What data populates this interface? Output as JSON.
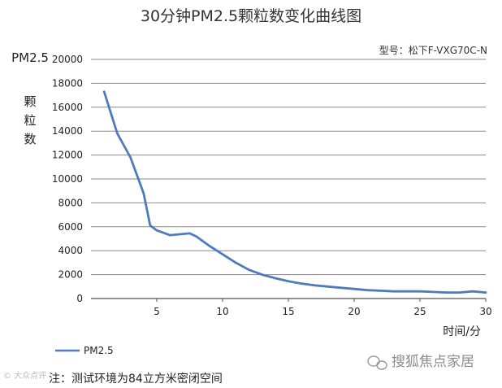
{
  "chart_data": {
    "type": "line",
    "title": "30分钟PM2.5颗粒数变化曲线图",
    "subtitle": "型号：松下F-VXG70C-N",
    "xlabel": "时间/分",
    "ylabel": "PM2.5颗粒数",
    "xlim": [
      0,
      30
    ],
    "ylim": [
      0,
      20000
    ],
    "xticks": [
      5,
      10,
      15,
      20,
      25,
      30
    ],
    "yticks": [
      0,
      2000,
      4000,
      6000,
      8000,
      10000,
      12000,
      14000,
      16000,
      18000,
      20000
    ],
    "grid": "horizontal",
    "legend": "bottom-left",
    "series": [
      {
        "name": "PM2.5",
        "color": "#4f7cb9",
        "x": [
          1,
          2,
          3,
          4,
          4.5,
          5,
          6,
          7,
          7.5,
          8,
          9,
          10,
          11,
          12,
          13,
          14,
          15,
          16,
          17,
          18,
          19,
          20,
          21,
          22,
          23,
          24,
          25,
          26,
          27,
          28,
          29,
          30
        ],
        "y": [
          17300,
          13800,
          11800,
          8800,
          6100,
          5700,
          5300,
          5400,
          5450,
          5200,
          4400,
          3700,
          3000,
          2400,
          2000,
          1700,
          1450,
          1250,
          1100,
          1000,
          900,
          800,
          700,
          650,
          600,
          600,
          600,
          550,
          500,
          500,
          600,
          500
        ]
      }
    ]
  },
  "note": "注：测试环境为84立方米密闭空间",
  "brand": "搜狐焦点家居",
  "watermark": "© 大众点评"
}
